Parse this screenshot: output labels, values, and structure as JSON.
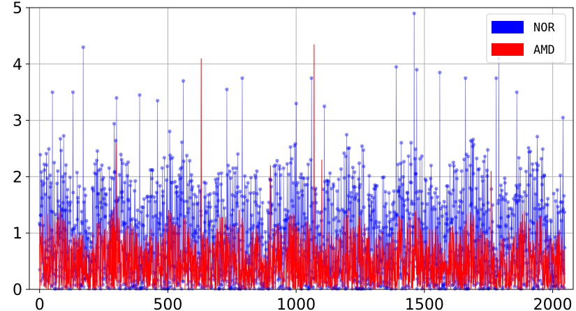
{
  "chart_data": {
    "type": "line",
    "title": "",
    "xlabel": "",
    "ylabel": "",
    "xlim": [
      -40,
      2080
    ],
    "ylim": [
      0,
      5
    ],
    "xticks": [
      0,
      500,
      1000,
      1500,
      2000
    ],
    "yticks": [
      0,
      1,
      2,
      3,
      4,
      5
    ],
    "grid": true,
    "legend_position": "top-right",
    "n_points": 2048,
    "series": [
      {
        "name": "NOR",
        "color": "#0000ff",
        "marker": "circle",
        "typical_range": [
          0.0,
          2.5
        ],
        "peaks": [
          {
            "x": 50,
            "y": 3.5
          },
          {
            "x": 130,
            "y": 3.5
          },
          {
            "x": 170,
            "y": 4.3
          },
          {
            "x": 300,
            "y": 3.4
          },
          {
            "x": 390,
            "y": 3.45
          },
          {
            "x": 460,
            "y": 3.35
          },
          {
            "x": 560,
            "y": 3.7
          },
          {
            "x": 730,
            "y": 3.55
          },
          {
            "x": 790,
            "y": 3.75
          },
          {
            "x": 1000,
            "y": 3.3
          },
          {
            "x": 1060,
            "y": 3.75
          },
          {
            "x": 1110,
            "y": 3.25
          },
          {
            "x": 1390,
            "y": 3.95
          },
          {
            "x": 1460,
            "y": 4.9
          },
          {
            "x": 1470,
            "y": 3.9
          },
          {
            "x": 1560,
            "y": 3.85
          },
          {
            "x": 1660,
            "y": 3.75
          },
          {
            "x": 1780,
            "y": 3.75
          },
          {
            "x": 1790,
            "y": 4.1
          },
          {
            "x": 1860,
            "y": 3.5
          },
          {
            "x": 2040,
            "y": 3.05
          }
        ]
      },
      {
        "name": "AMD",
        "color": "#ff0000",
        "marker": "none",
        "typical_range": [
          0.05,
          1.2
        ],
        "peaks": [
          {
            "x": 630,
            "y": 4.1
          },
          {
            "x": 1070,
            "y": 4.35
          },
          {
            "x": 300,
            "y": 2.6
          },
          {
            "x": 1100,
            "y": 2.3
          },
          {
            "x": 900,
            "y": 2.2
          },
          {
            "x": 1760,
            "y": 2.1
          }
        ]
      }
    ]
  }
}
